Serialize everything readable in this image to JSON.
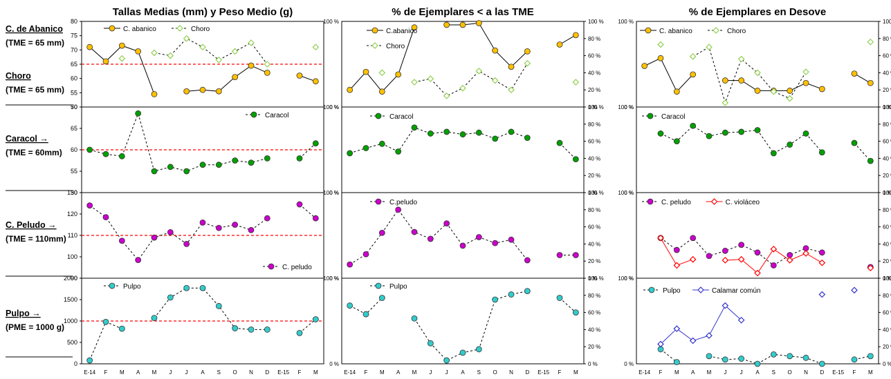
{
  "months": [
    "E-14",
    "F",
    "M",
    "A",
    "M",
    "J",
    "J",
    "A",
    "S",
    "O",
    "N",
    "D",
    "E-15",
    "F",
    "M"
  ],
  "colors": {
    "abanico": "#FFC000",
    "choro": "#92D050",
    "caracol": "#00A000",
    "peludo": "#CC00CC",
    "violaceo": "#FF0000",
    "pulpo": "#33CCCC",
    "calamar": "#3333CC",
    "reference": "#FF0000"
  },
  "row_labels": [
    {
      "title": "C. de Abanico",
      "sub": "(TME = 65 mm)"
    },
    {
      "title": "Choro",
      "sub": "(TME = 65 mm)"
    },
    {
      "title": "Caracol  →",
      "sub": "(TME = 60mm)"
    },
    {
      "title": "C. Peludo →",
      "sub": "(TME = 110mm)"
    },
    {
      "title": "Pulpo   →",
      "sub": "(PME = 1000 g)"
    }
  ],
  "columns": [
    {
      "title": "Tallas Medias (mm) y Peso Medio (g)"
    },
    {
      "title": "% de Ejemplares  < a las TME"
    },
    {
      "title": "% de Ejemplares en Desove"
    }
  ],
  "chart_data": [
    {
      "type": "line",
      "panel": "tallas-abanico-choro",
      "ylim": [
        50,
        80
      ],
      "ticks": [
        "50",
        "55",
        "60",
        "65",
        "70",
        "75",
        "80"
      ],
      "reference": 65,
      "series": [
        {
          "name": "C. abanico",
          "values": [
            71,
            66,
            71.5,
            69.5,
            54.5,
            null,
            55.5,
            56,
            55.5,
            60.5,
            64.5,
            62,
            null,
            61,
            59
          ]
        },
        {
          "name": "Choro",
          "values": [
            null,
            null,
            67,
            null,
            69,
            68,
            74,
            71,
            66.5,
            69.5,
            72.5,
            65,
            null,
            null,
            71
          ]
        }
      ]
    },
    {
      "type": "line",
      "panel": "tallas-caracol",
      "ylim": [
        50,
        70
      ],
      "ticks": [
        "50",
        "55",
        "60",
        "65",
        "70"
      ],
      "reference": 60,
      "series": [
        {
          "name": "Caracol",
          "values": [
            60,
            59,
            58.5,
            68.5,
            55,
            56,
            55,
            56.5,
            56.5,
            57.5,
            57,
            58,
            null,
            58,
            61.5
          ]
        }
      ]
    },
    {
      "type": "line",
      "panel": "tallas-peludo",
      "ylim": [
        90,
        130
      ],
      "ticks": [
        "90",
        "100",
        "110",
        "120",
        "130"
      ],
      "reference": 110,
      "series": [
        {
          "name": "C. peludo",
          "values": [
            124,
            118.5,
            107.5,
            98.5,
            109,
            111.5,
            106,
            116,
            113.5,
            115,
            112.5,
            118,
            null,
            124.5,
            118
          ]
        }
      ]
    },
    {
      "type": "line",
      "panel": "tallas-pulpo",
      "ylim": [
        0,
        2000
      ],
      "ticks": [
        "0",
        "500",
        "1000",
        "1500",
        "2000"
      ],
      "reference": 1000,
      "series": [
        {
          "name": "Pulpo",
          "values": [
            80,
            980,
            820,
            null,
            1070,
            1550,
            1770,
            1770,
            1350,
            830,
            800,
            800,
            null,
            720,
            1040
          ]
        }
      ]
    },
    {
      "type": "line",
      "panel": "tme-abanico-choro",
      "ylim": [
        0,
        100
      ],
      "ticks": [
        "0 %",
        "20 %",
        "40 %",
        "60 %",
        "80 %",
        "100 %"
      ],
      "series": [
        {
          "name": "C.abanico",
          "values": [
            20,
            41,
            18,
            38,
            93,
            null,
            96,
            96,
            98,
            66,
            47,
            65,
            null,
            73,
            84
          ]
        },
        {
          "name": "Choro",
          "values": [
            null,
            null,
            40,
            null,
            29,
            33,
            13,
            22,
            42,
            31,
            20,
            51,
            null,
            null,
            29
          ]
        }
      ]
    },
    {
      "type": "line",
      "panel": "tme-caracol",
      "ylim": [
        0,
        100
      ],
      "ticks": [
        "0 %",
        "20 %",
        "40 %",
        "60 %",
        "80 %",
        "100 %"
      ],
      "series": [
        {
          "name": "Caracol",
          "values": [
            46,
            52,
            57,
            48,
            76,
            69,
            71,
            68,
            70,
            63,
            71,
            64,
            null,
            58,
            39
          ]
        }
      ]
    },
    {
      "type": "line",
      "panel": "tme-peludo",
      "ylim": [
        0,
        100
      ],
      "ticks": [
        "0 %",
        "20 %",
        "40 %",
        "60 %",
        "80 %",
        "100 %"
      ],
      "series": [
        {
          "name": "C.peludo",
          "values": [
            16,
            28,
            53,
            80,
            54,
            46,
            64,
            38,
            48,
            41,
            45,
            21,
            null,
            27,
            27
          ]
        }
      ]
    },
    {
      "type": "line",
      "panel": "tme-pulpo",
      "ylim": [
        0,
        100
      ],
      "ticks": [
        "0 %",
        "20 %",
        "40 %",
        "60 %",
        "80 %",
        "100 %"
      ],
      "series": [
        {
          "name": "Pulpo",
          "values": [
            68,
            58,
            77,
            null,
            53,
            24,
            4,
            13,
            17,
            75,
            81,
            85,
            null,
            77,
            60
          ]
        }
      ]
    },
    {
      "type": "line",
      "panel": "desove-abanico-choro",
      "ylim": [
        0,
        100
      ],
      "ticks": [
        "0 %",
        "20 %",
        "40 %",
        "60 %",
        "80 %",
        "100 %"
      ],
      "series": [
        {
          "name": "C. abanico",
          "values": [
            48,
            57,
            18,
            38,
            null,
            31,
            31,
            19,
            19,
            19,
            28,
            21,
            null,
            39,
            28
          ]
        },
        {
          "name": "Choro",
          "values": [
            null,
            73,
            null,
            59,
            70,
            5,
            56,
            40,
            18,
            10,
            41,
            null,
            null,
            null,
            76
          ]
        }
      ]
    },
    {
      "type": "line",
      "panel": "desove-caracol",
      "ylim": [
        0,
        100
      ],
      "ticks": [
        "0 %",
        "20 %",
        "40 %",
        "60 %",
        "80 %",
        "100 %"
      ],
      "series": [
        {
          "name": "Caracol",
          "values": [
            null,
            69,
            60,
            78,
            66,
            70,
            71,
            73,
            46,
            56,
            69,
            47,
            null,
            58,
            37
          ]
        }
      ]
    },
    {
      "type": "line",
      "panel": "desove-peludo",
      "ylim": [
        0,
        100
      ],
      "ticks": [
        "0 %",
        "20 %",
        "40 %",
        "60 %",
        "80 %",
        "100 %"
      ],
      "series": [
        {
          "name": "C. peludo",
          "values": [
            null,
            47,
            33,
            47,
            26,
            32,
            39,
            30,
            15,
            27,
            35,
            30,
            null,
            null,
            13
          ]
        },
        {
          "name": "C. violáceo",
          "values": [
            null,
            47,
            15,
            22,
            null,
            21,
            22,
            6,
            34,
            21,
            29,
            18,
            null,
            null,
            12
          ]
        }
      ]
    },
    {
      "type": "line",
      "panel": "desove-pulpo",
      "ylim": [
        0,
        100
      ],
      "ticks": [
        "0 %",
        "20 %",
        "40 %",
        "60 %",
        "80 %",
        "100 %"
      ],
      "series": [
        {
          "name": "Pulpo",
          "values": [
            null,
            17,
            2,
            null,
            9,
            5,
            6,
            0,
            11,
            9,
            7,
            0,
            null,
            5,
            9
          ]
        },
        {
          "name": "Calamar común",
          "values": [
            null,
            23,
            41,
            27,
            33,
            68,
            51,
            null,
            null,
            null,
            null,
            81,
            null,
            86,
            null
          ]
        }
      ]
    }
  ]
}
